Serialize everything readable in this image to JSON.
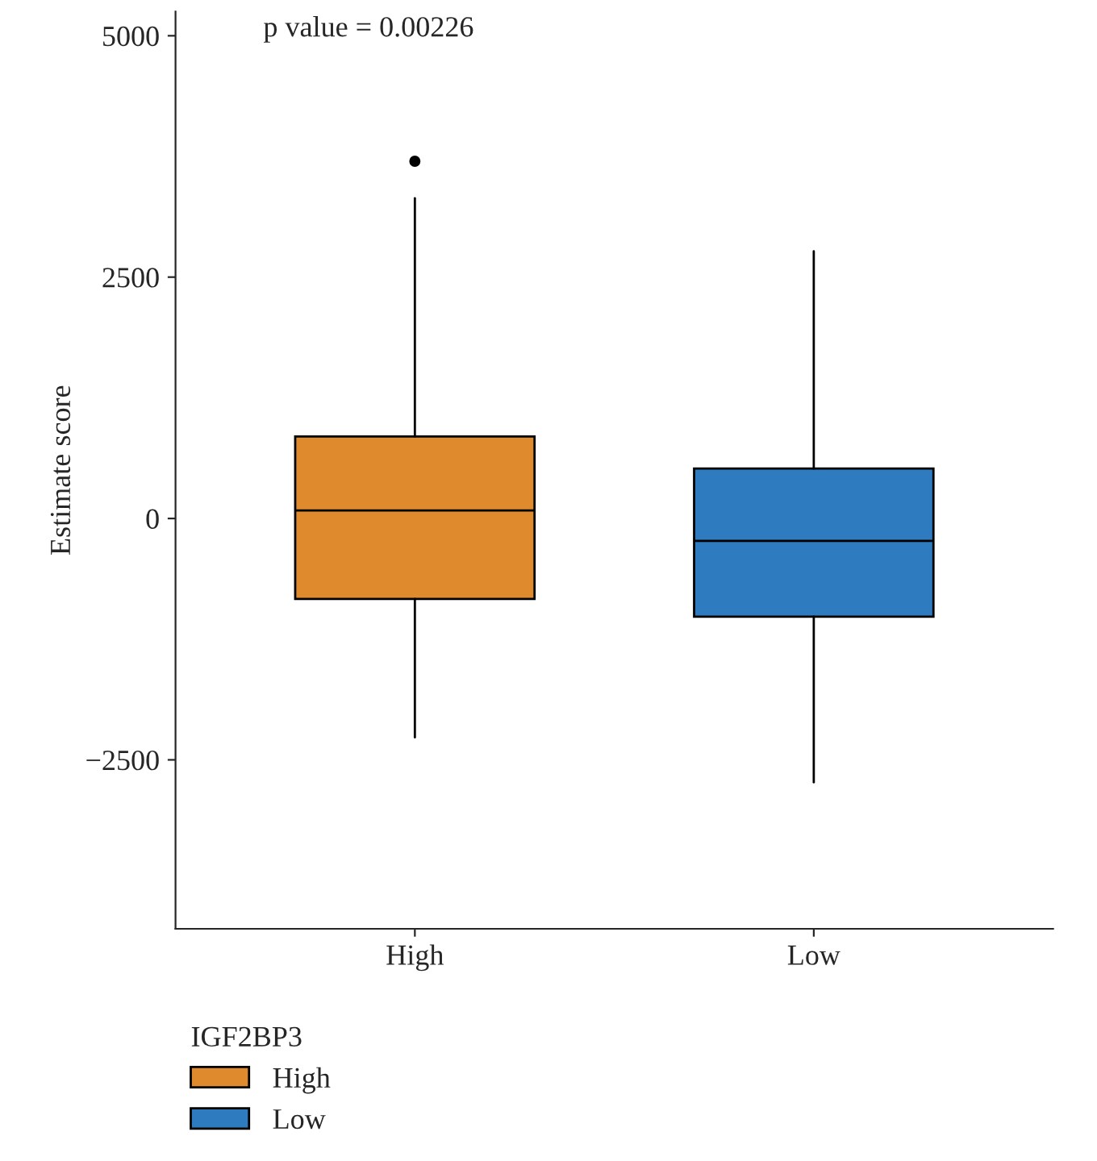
{
  "chart_data": {
    "type": "box",
    "categories": [
      "High",
      "Low"
    ],
    "ylabel": "Estimate score",
    "legend_title": "IGF2BP3",
    "annotations": [
      "p value = 0.00226"
    ],
    "series": [
      {
        "name": "High",
        "color": "#e08a2e",
        "boxes": [
          {
            "low": -2267,
            "q1": -833,
            "median": 83,
            "q3": 850,
            "high": 3317,
            "outliers": [
              3700
            ]
          },
          null
        ]
      },
      {
        "name": "Low",
        "color": "#2e7bbf",
        "boxes": [
          null,
          {
            "low": -2733,
            "q1": -1017,
            "median": -233,
            "q3": 517,
            "high": 2767
          }
        ]
      }
    ],
    "ylim": [
      -4250,
      5250
    ],
    "yticks": [
      5000,
      2500,
      0,
      {
        "value": -2500,
        "label": "−2500"
      }
    ],
    "grid": false,
    "legend": "bottom left"
  }
}
